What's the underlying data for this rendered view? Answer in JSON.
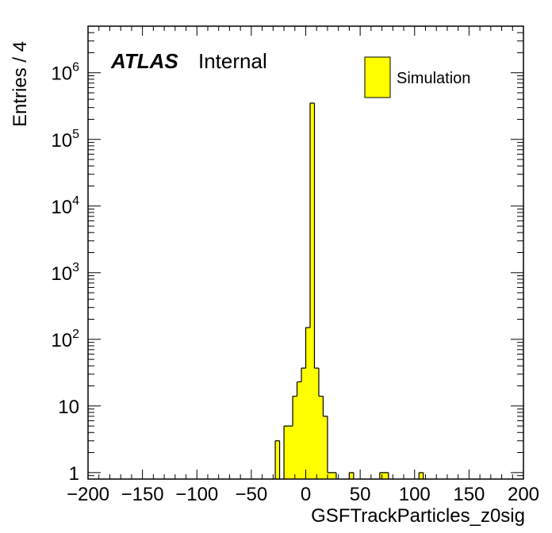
{
  "chart_data": {
    "type": "bar",
    "histogram": true,
    "ylog": true,
    "ylabel": "Entries / 4",
    "xlabel": "GSFTrackParticles_z0sig",
    "xlim": [
      -200,
      200
    ],
    "ylim": [
      0.8,
      5000000
    ],
    "bin_width": 4,
    "x_ticks": [
      "−200",
      "−150",
      "−100",
      "−50",
      "0",
      "50",
      "100",
      "150",
      "200"
    ],
    "x_tick_values": [
      -200,
      -150,
      -100,
      -50,
      0,
      50,
      100,
      150,
      200
    ],
    "y_ticks": [
      {
        "value": 1,
        "base": "1",
        "exp": ""
      },
      {
        "value": 10,
        "base": "10",
        "exp": ""
      },
      {
        "value": 100,
        "base": "10",
        "exp": "2"
      },
      {
        "value": 1000,
        "base": "10",
        "exp": "3"
      },
      {
        "value": 10000,
        "base": "10",
        "exp": "4"
      },
      {
        "value": 100000,
        "base": "10",
        "exp": "5"
      },
      {
        "value": 1000000,
        "base": "10",
        "exp": "6"
      }
    ],
    "series": [
      {
        "name": "Simulation",
        "color": "#ffff00",
        "edges": [
          -28,
          -24,
          -20,
          -16,
          -12,
          -8,
          -4,
          0,
          4,
          8,
          12,
          16,
          20,
          24,
          28,
          40,
          44,
          68,
          72,
          76,
          104,
          108
        ],
        "values": [
          3,
          0,
          5,
          5,
          14,
          23,
          37,
          150,
          350000,
          37,
          14,
          7,
          1,
          1,
          0,
          1,
          0,
          1,
          1,
          0,
          1
        ]
      }
    ],
    "annotations": {
      "atlas": "ATLAS",
      "internal": "Internal"
    },
    "colors": {
      "fill": "#ffff00",
      "line": "#000000"
    }
  }
}
